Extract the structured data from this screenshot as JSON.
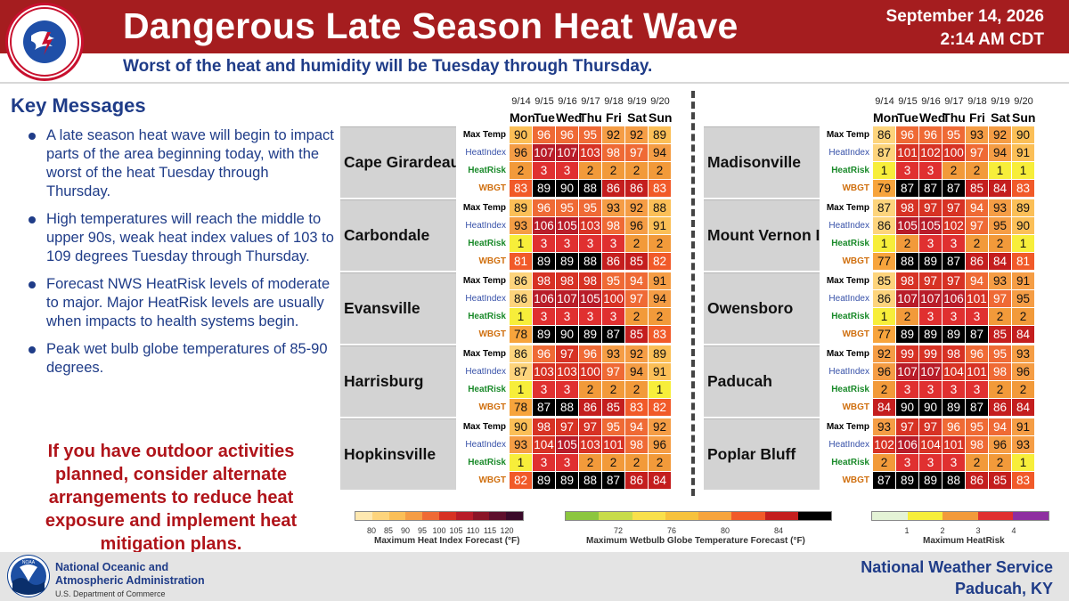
{
  "header": {
    "title": "Dangerous Late Season Heat Wave",
    "date": "September 14, 2026",
    "time": "2:14 AM CDT",
    "subtitle": "Worst of the heat and humidity will be Tuesday through Thursday.",
    "logo_text": "NATIONAL WEATHER SERVICE"
  },
  "key_messages": {
    "title": "Key Messages",
    "items": [
      "A late season heat wave will begin to impact parts of the area beginning today, with the worst of the heat Tuesday through Thursday.",
      "High temperatures will reach the middle to upper 90s, weak heat index values of 103 to 109 degrees Tuesday through Thursday.",
      "Forecast NWS HeatRisk levels of moderate to major. Major HeatRisk levels are usually when impacts to health systems begin.",
      "Peak wet bulb globe temperatures of 85-90 degrees."
    ],
    "warning": "If you have outdoor activities planned, consider alternate arrangements to reduce heat exposure and implement heat mitigation plans."
  },
  "days": [
    {
      "date": "9/14",
      "dow": "Mon"
    },
    {
      "date": "9/15",
      "dow": "Tue"
    },
    {
      "date": "9/16",
      "dow": "Wed"
    },
    {
      "date": "9/17",
      "dow": "Thu"
    },
    {
      "date": "9/18",
      "dow": "Fri"
    },
    {
      "date": "9/19",
      "dow": "Sat"
    },
    {
      "date": "9/20",
      "dow": "Sun"
    }
  ],
  "row_labels": [
    "Max Temp",
    "HeatIndex",
    "HeatRisk",
    "WBGT"
  ],
  "left_cities": [
    {
      "name": "Cape Girardeau",
      "max_temp": [
        90,
        96,
        96,
        95,
        92,
        92,
        89
      ],
      "heat_index": [
        96,
        107,
        107,
        103,
        98,
        97,
        94
      ],
      "heat_risk": [
        2,
        3,
        3,
        2,
        2,
        2,
        2
      ],
      "wbgt": [
        83,
        89,
        90,
        88,
        86,
        86,
        83
      ]
    },
    {
      "name": "Carbondale",
      "max_temp": [
        89,
        96,
        95,
        95,
        93,
        92,
        88
      ],
      "heat_index": [
        93,
        106,
        105,
        103,
        98,
        96,
        91
      ],
      "heat_risk": [
        1,
        3,
        3,
        3,
        3,
        2,
        2
      ],
      "wbgt": [
        81,
        89,
        89,
        88,
        86,
        85,
        82
      ]
    },
    {
      "name": "Evansville",
      "max_temp": [
        86,
        98,
        98,
        98,
        95,
        94,
        91
      ],
      "heat_index": [
        86,
        106,
        107,
        105,
        100,
        97,
        94
      ],
      "heat_risk": [
        1,
        3,
        3,
        3,
        3,
        2,
        2
      ],
      "wbgt": [
        78,
        89,
        90,
        89,
        87,
        85,
        83
      ]
    },
    {
      "name": "Harrisburg",
      "max_temp": [
        86,
        96,
        97,
        96,
        93,
        92,
        89
      ],
      "heat_index": [
        87,
        103,
        103,
        100,
        97,
        94,
        91
      ],
      "heat_risk": [
        1,
        3,
        3,
        2,
        2,
        2,
        1
      ],
      "wbgt": [
        78,
        87,
        88,
        86,
        85,
        83,
        82
      ]
    },
    {
      "name": "Hopkinsville",
      "max_temp": [
        90,
        98,
        97,
        97,
        95,
        94,
        92
      ],
      "heat_index": [
        93,
        104,
        105,
        103,
        101,
        98,
        96
      ],
      "heat_risk": [
        1,
        3,
        3,
        2,
        2,
        2,
        2
      ],
      "wbgt": [
        82,
        89,
        89,
        88,
        87,
        86,
        84
      ]
    }
  ],
  "right_cities": [
    {
      "name": "Madisonville",
      "max_temp": [
        86,
        96,
        96,
        95,
        93,
        92,
        90
      ],
      "heat_index": [
        87,
        101,
        102,
        100,
        97,
        94,
        91
      ],
      "heat_risk": [
        1,
        3,
        3,
        2,
        2,
        1,
        1
      ],
      "wbgt": [
        79,
        87,
        87,
        87,
        85,
        84,
        83
      ]
    },
    {
      "name": "Mount Vernon IL",
      "max_temp": [
        87,
        98,
        97,
        97,
        94,
        93,
        89
      ],
      "heat_index": [
        86,
        105,
        105,
        102,
        97,
        95,
        90
      ],
      "heat_risk": [
        1,
        2,
        3,
        3,
        2,
        2,
        1
      ],
      "wbgt": [
        77,
        88,
        89,
        87,
        86,
        84,
        81
      ]
    },
    {
      "name": "Owensboro",
      "max_temp": [
        85,
        98,
        97,
        97,
        94,
        93,
        91
      ],
      "heat_index": [
        86,
        107,
        107,
        106,
        101,
        97,
        95
      ],
      "heat_risk": [
        1,
        2,
        3,
        3,
        3,
        2,
        2
      ],
      "wbgt": [
        77,
        89,
        89,
        89,
        87,
        85,
        84
      ]
    },
    {
      "name": "Paducah",
      "max_temp": [
        92,
        99,
        99,
        98,
        96,
        95,
        93
      ],
      "heat_index": [
        96,
        107,
        107,
        104,
        101,
        98,
        96
      ],
      "heat_risk": [
        2,
        3,
        3,
        3,
        3,
        2,
        2
      ],
      "wbgt": [
        84,
        90,
        90,
        89,
        87,
        86,
        84
      ]
    },
    {
      "name": "Poplar Bluff",
      "max_temp": [
        93,
        97,
        97,
        96,
        95,
        94,
        91
      ],
      "heat_index": [
        102,
        106,
        104,
        101,
        98,
        96,
        93
      ],
      "heat_risk": [
        2,
        3,
        3,
        3,
        2,
        2,
        1
      ],
      "wbgt": [
        87,
        89,
        89,
        88,
        86,
        85,
        83
      ]
    }
  ],
  "legends": {
    "heat_index": {
      "caption": "Maximum Heat Index Forecast (°F)",
      "ticks": [
        "80",
        "85",
        "90",
        "95",
        "100",
        "105",
        "110",
        "115",
        "120"
      ]
    },
    "wbgt": {
      "caption": "Maximum Wetbulb Globe Temperature Forecast (°F)",
      "ticks": [
        "72",
        "76",
        "80",
        "84"
      ]
    },
    "heat_risk": {
      "caption": "Maximum HeatRisk",
      "ticks": [
        "1",
        "2",
        "3",
        "4"
      ]
    }
  },
  "footer": {
    "org_line1": "National Oceanic and",
    "org_line2": "Atmospheric Administration",
    "org_line3": "U.S. Department of Commerce",
    "noaa_logo_text": "NOAA",
    "office_line1": "National Weather Service",
    "office_line2": "Paducah, KY"
  }
}
